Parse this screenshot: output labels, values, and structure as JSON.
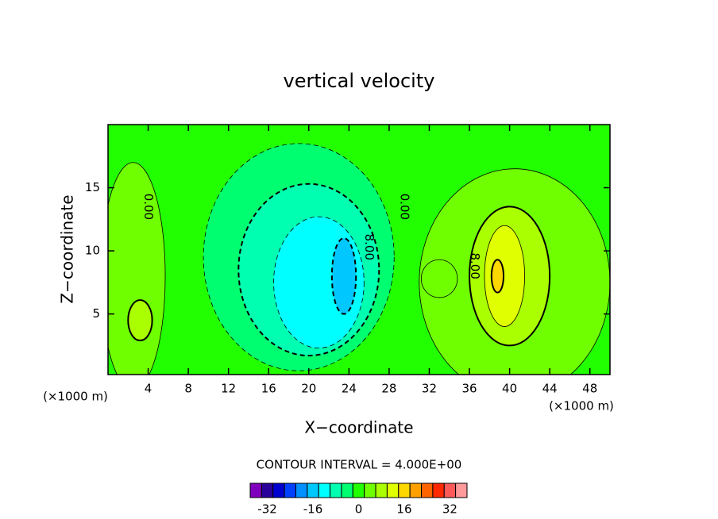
{
  "chart_data": {
    "type": "contour",
    "title": "vertical velocity",
    "x_label": "X−coordinate",
    "y_label": "Z−coordinate",
    "x_unit": "(×1000 m)",
    "y_unit": "(×1000 m)",
    "contour_interval": "CONTOUR INTERVAL = 4.000E+00",
    "xlim": [
      0,
      50
    ],
    "ylim": [
      0.2,
      20
    ],
    "xticks": [
      4,
      8,
      12,
      16,
      20,
      24,
      28,
      32,
      36,
      40,
      44,
      48
    ],
    "yticks": [
      5,
      10,
      15
    ],
    "background_level": 0,
    "regions": [
      {
        "level": 4,
        "cx": 2.5,
        "cy": 8,
        "rx": 3.2,
        "ry": 9
      },
      {
        "level": 8,
        "cx": 3.2,
        "cy": 4.5,
        "rx": 1.2,
        "ry": 1.6
      },
      {
        "level": -4,
        "cx": 19,
        "cy": 9.5,
        "rx": 9.5,
        "ry": 9
      },
      {
        "level": -8,
        "cx": 20,
        "cy": 8.5,
        "rx": 7,
        "ry": 6.8
      },
      {
        "level": -12,
        "cx": 21,
        "cy": 7.5,
        "rx": 4.5,
        "ry": 5.2
      },
      {
        "level": -16,
        "cx": 23.5,
        "cy": 8,
        "rx": 1.2,
        "ry": 3
      },
      {
        "level": 4,
        "cx": 40.5,
        "cy": 7.5,
        "rx": 9.5,
        "ry": 9
      },
      {
        "level": 4,
        "cx": 33,
        "cy": 7.8,
        "rx": 1.8,
        "ry": 1.5
      },
      {
        "level": 8,
        "cx": 40,
        "cy": 8,
        "rx": 4,
        "ry": 5.5
      },
      {
        "level": 12,
        "cx": 39.5,
        "cy": 8,
        "rx": 2,
        "ry": 4
      },
      {
        "level": 16,
        "cx": 38.8,
        "cy": 8,
        "rx": 0.6,
        "ry": 1.3
      }
    ],
    "contour_labels": [
      {
        "text": "0.00",
        "x": 4,
        "y": 13.5
      },
      {
        "text": "0.00",
        "x": 29.5,
        "y": 13.5
      },
      {
        "text": "8.00",
        "x": 36.5,
        "y": 8.8
      },
      {
        "text": "8.00",
        "x": 26,
        "y": 10.3
      }
    ],
    "colorbar": {
      "levels": [
        -36,
        -32,
        -28,
        -24,
        -20,
        -16,
        -12,
        -8,
        -4,
        0,
        4,
        8,
        12,
        16,
        20,
        24,
        28,
        32,
        36
      ],
      "colors": [
        "#8000c0",
        "#2a009a",
        "#0000d0",
        "#0040ff",
        "#0090ff",
        "#00c8ff",
        "#00ffff",
        "#00ffb0",
        "#00ff70",
        "#22ff00",
        "#70ff00",
        "#aaff00",
        "#e0ff00",
        "#ffd700",
        "#ffa000",
        "#ff6400",
        "#ff2800",
        "#ff5a5a",
        "#ff9a9a"
      ],
      "ticks": [
        -32,
        -16,
        0,
        16,
        32
      ]
    }
  }
}
